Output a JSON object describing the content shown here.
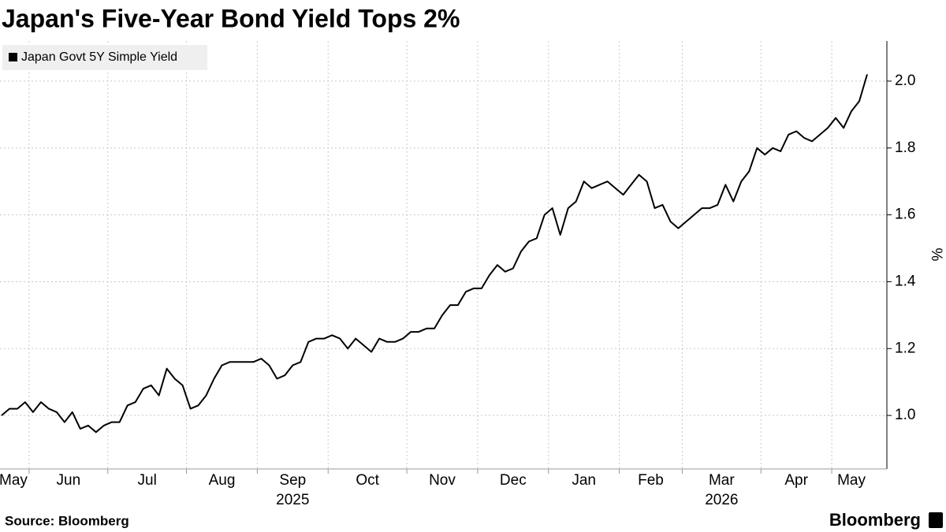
{
  "chart_data": {
    "type": "line",
    "title": "Japan's Five-Year Bond Yield Tops 2%",
    "y_axis_label": "%",
    "source": "Source: Bloomberg",
    "brand": "Bloomberg",
    "categories": [
      "May",
      "May",
      "May",
      "May",
      "Jun",
      "Jun",
      "Jun",
      "Jun",
      "Jun",
      "Jun",
      "Jun",
      "Jun",
      "Jun",
      "Jun",
      "Jul",
      "Jul",
      "Jul",
      "Jul",
      "Jul",
      "Jul",
      "Jul",
      "Jul",
      "Jul",
      "Jul",
      "Aug",
      "Aug",
      "Aug",
      "Aug",
      "Aug",
      "Aug",
      "Aug",
      "Aug",
      "Aug",
      "Sep",
      "Sep",
      "Sep",
      "Sep",
      "Sep",
      "Sep",
      "Sep",
      "Sep",
      "Sep",
      "Oct",
      "Oct",
      "Oct",
      "Oct",
      "Oct",
      "Oct",
      "Oct",
      "Oct",
      "Oct",
      "Oct",
      "Nov",
      "Nov",
      "Nov",
      "Nov",
      "Nov",
      "Nov",
      "Nov",
      "Nov",
      "Nov",
      "Dec",
      "Dec",
      "Dec",
      "Dec",
      "Dec",
      "Dec",
      "Dec",
      "Dec",
      "Dec",
      "Jan",
      "Jan",
      "Jan",
      "Jan",
      "Jan",
      "Jan",
      "Jan",
      "Jan",
      "Jan",
      "Feb",
      "Feb",
      "Feb",
      "Feb",
      "Feb",
      "Feb",
      "Feb",
      "Feb",
      "Mar",
      "Mar",
      "Mar",
      "Mar",
      "Mar",
      "Mar",
      "Mar",
      "Mar",
      "Mar",
      "Mar",
      "Apr",
      "Apr",
      "Apr",
      "Apr",
      "Apr",
      "Apr",
      "Apr",
      "Apr",
      "Apr",
      "May",
      "May",
      "May",
      "May",
      "May"
    ],
    "year_labels": [
      {
        "label": "2025",
        "category": "Sep"
      },
      {
        "label": "2026",
        "category": "Mar"
      }
    ],
    "series": [
      {
        "name": "Japan Govt 5Y Simple Yield",
        "color": "#000000",
        "values": [
          1.0,
          1.02,
          1.02,
          1.04,
          1.01,
          1.04,
          1.02,
          1.01,
          0.98,
          1.01,
          0.96,
          0.97,
          0.95,
          0.97,
          0.98,
          0.98,
          1.03,
          1.04,
          1.08,
          1.09,
          1.06,
          1.14,
          1.11,
          1.09,
          1.02,
          1.03,
          1.06,
          1.11,
          1.15,
          1.16,
          1.16,
          1.16,
          1.16,
          1.17,
          1.15,
          1.11,
          1.12,
          1.15,
          1.16,
          1.22,
          1.23,
          1.23,
          1.24,
          1.23,
          1.2,
          1.23,
          1.21,
          1.19,
          1.23,
          1.22,
          1.22,
          1.23,
          1.25,
          1.25,
          1.26,
          1.26,
          1.3,
          1.33,
          1.33,
          1.37,
          1.38,
          1.38,
          1.42,
          1.45,
          1.43,
          1.44,
          1.49,
          1.52,
          1.53,
          1.6,
          1.62,
          1.54,
          1.62,
          1.64,
          1.7,
          1.68,
          1.69,
          1.7,
          1.68,
          1.66,
          1.69,
          1.72,
          1.7,
          1.62,
          1.63,
          1.58,
          1.56,
          1.58,
          1.6,
          1.62,
          1.62,
          1.63,
          1.69,
          1.64,
          1.7,
          1.73,
          1.8,
          1.78,
          1.8,
          1.79,
          1.84,
          1.85,
          1.83,
          1.82,
          1.84,
          1.86,
          1.89,
          1.86,
          1.91,
          1.94,
          2.02
        ]
      }
    ],
    "ylim": [
      0.84,
      2.12
    ],
    "yticks": [
      {
        "value": 1,
        "label": "1.0"
      },
      {
        "value": 1.2,
        "label": "1.2"
      },
      {
        "value": 1.4,
        "label": "1.4"
      },
      {
        "value": 1.6,
        "label": "1.6"
      },
      {
        "value": 1.8,
        "label": "1.8"
      },
      {
        "value": 2,
        "label": "2.0"
      }
    ],
    "grid": true,
    "legend": "top-left"
  }
}
